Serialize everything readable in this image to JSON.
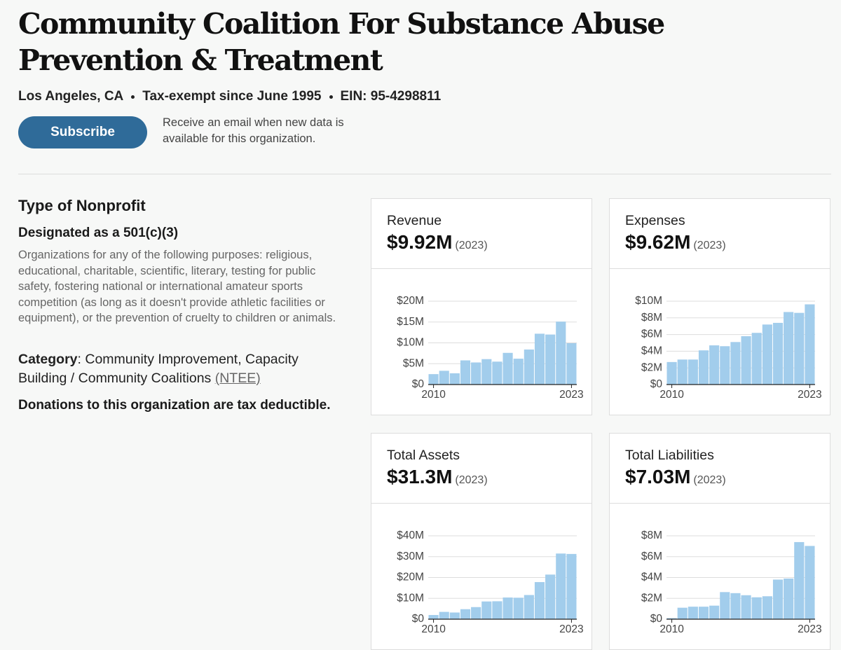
{
  "header": {
    "title": "Community Coalition For Substance Abuse Prevention & Treatment",
    "meta": [
      "Los Angeles, CA",
      "Tax-exempt since June 1995",
      "EIN: 95-4298811"
    ],
    "subscribe": "Subscribe",
    "subscribe_note": "Receive an email when new data is available for this organization."
  },
  "type_section": {
    "heading": "Type of Nonprofit",
    "designation": "Designated as a 501(c)(3)",
    "description": "Organizations for any of the following purposes: religious, educational, charitable, scientific, literary, testing for public safety, fostering national or international amateur sports competition (as long as it doesn't provide athletic facilities or equipment), or the prevention of cruelty to children or animals.",
    "category_label": "Category",
    "category_separator": ":",
    "category_value": "Community Improvement, Capacity Building / Community Coalitions",
    "ntee": "(NTEE)",
    "deductible": "Donations to this organization are tax deductible."
  },
  "chart_data": [
    {
      "type": "bar",
      "title": "Revenue",
      "headline": "$9.92M",
      "headline_year": "(2023)",
      "color": "#a2cdec",
      "x": [
        2010,
        2011,
        2012,
        2013,
        2014,
        2015,
        2016,
        2017,
        2018,
        2019,
        2020,
        2021,
        2022,
        2023
      ],
      "values": [
        2500000,
        3300000,
        2700000,
        5800000,
        5300000,
        6100000,
        5500000,
        7600000,
        6200000,
        8400000,
        12200000,
        12000000,
        15100000,
        9920000
      ],
      "xlim": [
        2009.5,
        2023.5
      ],
      "xticks": [
        2010,
        2023
      ],
      "ylim": [
        0,
        20000000
      ],
      "yticks": [
        {
          "value": 0,
          "label": "$0"
        },
        {
          "value": 5000000,
          "label": "$5M"
        },
        {
          "value": 10000000,
          "label": "$10M"
        },
        {
          "value": 15000000,
          "label": "$15M"
        },
        {
          "value": 20000000,
          "label": "$20M"
        }
      ],
      "grid": true
    },
    {
      "type": "bar",
      "title": "Expenses",
      "headline": "$9.62M",
      "headline_year": "(2023)",
      "color": "#a2cdec",
      "x": [
        2010,
        2011,
        2012,
        2013,
        2014,
        2015,
        2016,
        2017,
        2018,
        2019,
        2020,
        2021,
        2022,
        2023
      ],
      "values": [
        2700000,
        3000000,
        3000000,
        4100000,
        4700000,
        4600000,
        5100000,
        5800000,
        6200000,
        7200000,
        7400000,
        8700000,
        8600000,
        9620000
      ],
      "xlim": [
        2009.5,
        2023.5
      ],
      "xticks": [
        2010,
        2023
      ],
      "ylim": [
        0,
        10000000
      ],
      "yticks": [
        {
          "value": 0,
          "label": "$0"
        },
        {
          "value": 2000000,
          "label": "$2M"
        },
        {
          "value": 4000000,
          "label": "$4M"
        },
        {
          "value": 6000000,
          "label": "$6M"
        },
        {
          "value": 8000000,
          "label": "$8M"
        },
        {
          "value": 10000000,
          "label": "$10M"
        }
      ],
      "grid": true
    },
    {
      "type": "bar",
      "title": "Total Assets",
      "headline": "$31.3M",
      "headline_year": "(2023)",
      "color": "#a2cdec",
      "x": [
        2010,
        2011,
        2012,
        2013,
        2014,
        2015,
        2016,
        2017,
        2018,
        2019,
        2020,
        2021,
        2022,
        2023
      ],
      "values": [
        2000000,
        3500000,
        3200000,
        4800000,
        5800000,
        8500000,
        8600000,
        10400000,
        10300000,
        11600000,
        17800000,
        21400000,
        31500000,
        31300000
      ],
      "xlim": [
        2009.5,
        2023.5
      ],
      "xticks": [
        2010,
        2023
      ],
      "ylim": [
        0,
        40000000
      ],
      "yticks": [
        {
          "value": 0,
          "label": "$0"
        },
        {
          "value": 10000000,
          "label": "$10M"
        },
        {
          "value": 20000000,
          "label": "$20M"
        },
        {
          "value": 30000000,
          "label": "$30M"
        },
        {
          "value": 40000000,
          "label": "$40M"
        }
      ],
      "grid": true
    },
    {
      "type": "bar",
      "title": "Total Liabilities",
      "headline": "$7.03M",
      "headline_year": "(2023)",
      "color": "#a2cdec",
      "x": [
        2010,
        2011,
        2012,
        2013,
        2014,
        2015,
        2016,
        2017,
        2018,
        2019,
        2020,
        2021,
        2022,
        2023
      ],
      "values": [
        100000,
        1100000,
        1200000,
        1200000,
        1300000,
        2600000,
        2500000,
        2300000,
        2100000,
        2200000,
        3800000,
        3900000,
        7400000,
        7030000
      ],
      "xlim": [
        2009.5,
        2023.5
      ],
      "xticks": [
        2010,
        2023
      ],
      "ylim": [
        0,
        8000000
      ],
      "yticks": [
        {
          "value": 0,
          "label": "$0"
        },
        {
          "value": 2000000,
          "label": "$2M"
        },
        {
          "value": 4000000,
          "label": "$4M"
        },
        {
          "value": 6000000,
          "label": "$6M"
        },
        {
          "value": 8000000,
          "label": "$8M"
        }
      ],
      "grid": true
    }
  ]
}
